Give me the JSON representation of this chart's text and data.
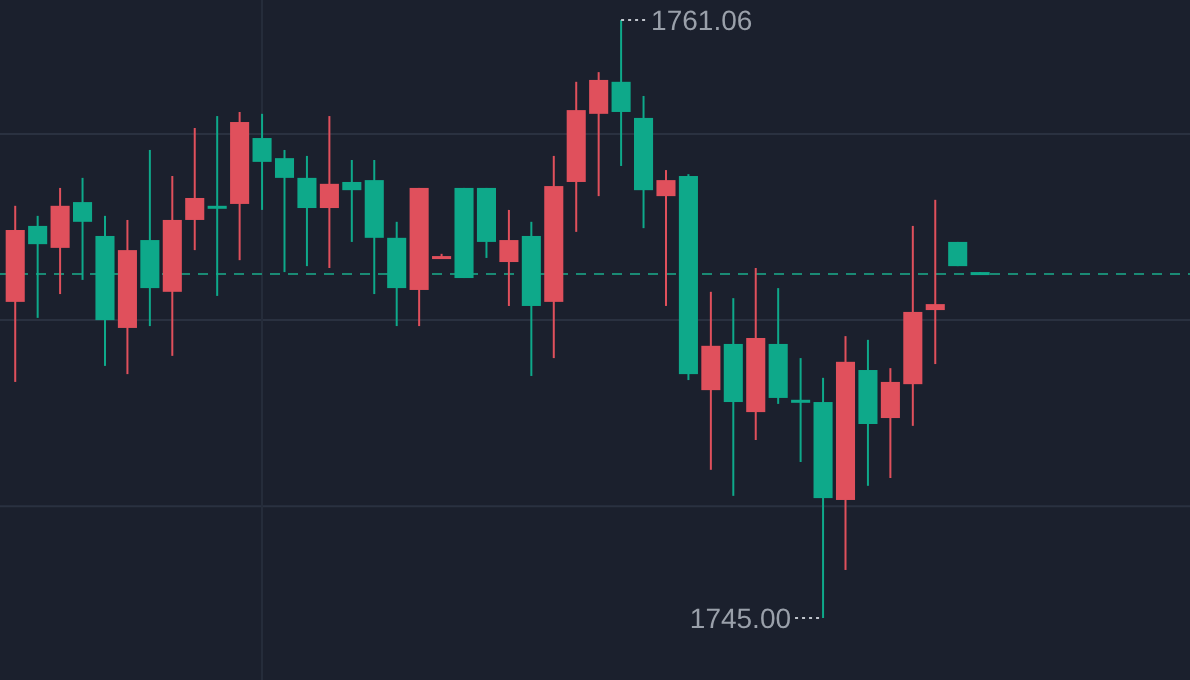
{
  "chart_data": {
    "type": "candlestick",
    "categories": [
      null,
      null,
      null,
      null,
      null,
      null,
      null,
      null,
      null,
      null,
      null,
      null,
      null,
      null,
      null,
      null,
      null,
      null,
      null,
      null,
      null,
      null,
      null,
      null,
      null,
      null,
      null,
      null,
      null,
      null,
      null,
      null,
      null,
      null,
      null,
      null,
      null,
      null,
      null,
      null,
      null,
      null,
      null,
      null
    ],
    "ohlc": [
      [
        1753.49,
        1756.07,
        1751.34,
        1755.42
      ],
      [
        1755.53,
        1755.8,
        1753.06,
        1755.04
      ],
      [
        1754.94,
        1756.55,
        1753.7,
        1756.07
      ],
      [
        1756.17,
        1756.82,
        1754.08,
        1755.64
      ],
      [
        1755.26,
        1755.8,
        1751.77,
        1753.0
      ],
      [
        1752.79,
        1755.69,
        1751.55,
        1754.88
      ],
      [
        1755.15,
        1757.57,
        1752.84,
        1753.86
      ],
      [
        1753.76,
        1756.87,
        1752.04,
        1755.69
      ],
      [
        1755.69,
        1758.16,
        1754.88,
        1756.28
      ],
      [
        1756.07,
        1758.48,
        1753.65,
        1756.07
      ],
      [
        1756.12,
        1758.59,
        1754.61,
        1758.32
      ],
      [
        1757.89,
        1758.54,
        1755.96,
        1757.25
      ],
      [
        1757.35,
        1757.57,
        1754.29,
        1756.82
      ],
      [
        1756.82,
        1757.41,
        1754.45,
        1756.01
      ],
      [
        1756.01,
        1758.48,
        1754.4,
        1756.66
      ],
      [
        1756.71,
        1757.3,
        1755.1,
        1756.49
      ],
      [
        1756.76,
        1757.3,
        1753.7,
        1755.21
      ],
      [
        1755.21,
        1755.64,
        1752.84,
        1753.86
      ],
      [
        1753.81,
        1756.55,
        1752.84,
        1756.55
      ],
      [
        1754.72,
        1754.78,
        1754.67,
        1754.72
      ],
      [
        1756.55,
        1756.55,
        1754.13,
        1754.13
      ],
      [
        1756.55,
        1756.55,
        1754.67,
        1755.1
      ],
      [
        1754.56,
        1755.96,
        1753.38,
        1755.15
      ],
      [
        1755.26,
        1755.64,
        1751.5,
        1753.38
      ],
      [
        1753.49,
        1757.41,
        1751.98,
        1756.6
      ],
      [
        1756.71,
        1759.4,
        1755.37,
        1758.64
      ],
      [
        1758.54,
        1759.66,
        1756.33,
        1759.45
      ],
      [
        1759.4,
        1761.06,
        1757.14,
        1758.59
      ],
      [
        1758.43,
        1759.02,
        1755.47,
        1756.49
      ],
      [
        1756.33,
        1757.03,
        1753.38,
        1756.76
      ],
      [
        1756.87,
        1756.92,
        1751.39,
        1751.55
      ],
      [
        1751.12,
        1753.76,
        1748.98,
        1752.31
      ],
      [
        1752.36,
        1753.59,
        1748.28,
        1750.8
      ],
      [
        1750.53,
        1754.4,
        1749.78,
        1752.52
      ],
      [
        1752.36,
        1753.86,
        1750.75,
        1750.91
      ],
      [
        1750.86,
        1751.98,
        1749.19,
        1750.86
      ],
      [
        1750.8,
        1751.45,
        1745.0,
        1748.22
      ],
      [
        1748.17,
        1752.57,
        1746.29,
        1751.88
      ],
      [
        1751.66,
        1752.47,
        1748.55,
        1750.21
      ],
      [
        1750.37,
        1751.71,
        1748.76,
        1751.34
      ],
      [
        1751.28,
        1755.53,
        1750.16,
        1753.22
      ],
      [
        1753.27,
        1756.23,
        1751.82,
        1753.43
      ],
      [
        1755.1,
        1755.1,
        1754.45,
        1754.45
      ],
      [
        1754.29,
        1754.29,
        1754.24,
        1754.24
      ]
    ],
    "colors": [
      "#e0505c",
      "#0ea98a",
      "#e0505c",
      "#0ea98a",
      "#0ea98a",
      "#e0505c",
      "#0ea98a",
      "#e0505c",
      "#e0505c",
      "#0ea98a",
      "#e0505c",
      "#0ea98a",
      "#0ea98a",
      "#0ea98a",
      "#e0505c",
      "#0ea98a",
      "#0ea98a",
      "#0ea98a",
      "#e0505c",
      "#e0505c",
      "#0ea98a",
      "#0ea98a",
      "#e0505c",
      "#0ea98a",
      "#e0505c",
      "#e0505c",
      "#e0505c",
      "#0ea98a",
      "#0ea98a",
      "#e0505c",
      "#0ea98a",
      "#e0505c",
      "#0ea98a",
      "#e0505c",
      "#0ea98a",
      "#0ea98a",
      "#0ea98a",
      "#e0505c",
      "#0ea98a",
      "#e0505c",
      "#e0505c",
      "#e0505c",
      "#0ea98a",
      "#0ea98a"
    ],
    "yticks": [
      {
        "value": 1758,
        "label": null
      },
      {
        "value": 1753,
        "label": null
      },
      {
        "value": 1748,
        "label": null
      }
    ],
    "grid": "y",
    "ref_lines": [
      {
        "axis": "y",
        "value": 1754.24,
        "color": "#1a8a74",
        "line_style": "dashed"
      }
    ],
    "annotations": [
      "1761.06",
      "1745.00"
    ]
  }
}
